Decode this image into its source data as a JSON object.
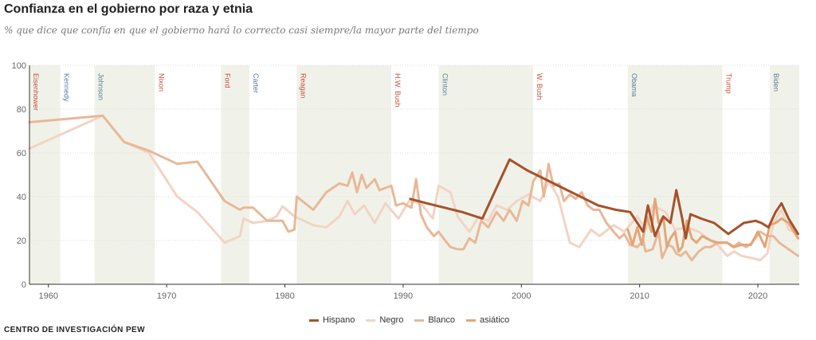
{
  "title": "Confianza en el gobierno por raza y etnia",
  "subtitle": "% que dice que confía en que el gobierno hará lo correcto casi siempre/la mayor parte del tiempo",
  "source": "CENTRO DE INVESTIGACIÓN PEW",
  "colors": {
    "shade": "#f0f2ea",
    "axis": "#333333",
    "grid": "#dcdcdc",
    "tick": "#666666",
    "dem": "#5b7d99",
    "rep": "#c1503a"
  },
  "chart_data": {
    "type": "line",
    "xlim": [
      1958.4,
      2023.5
    ],
    "ylim": [
      0,
      100
    ],
    "x_ticks": [
      1960,
      1970,
      1980,
      1990,
      2000,
      2010,
      2020
    ],
    "y_ticks": [
      0,
      20,
      40,
      60,
      80,
      100
    ],
    "grid": true,
    "legend": "bottom-center",
    "presidents": [
      {
        "name": "Eisenhower",
        "start": 1958.4,
        "end": 1961.0,
        "party": "rep",
        "shaded": true
      },
      {
        "name": "Kennedy",
        "start": 1961.0,
        "end": 1963.9,
        "party": "dem",
        "shaded": false
      },
      {
        "name": "Johnson",
        "start": 1963.9,
        "end": 1969.0,
        "party": "dem",
        "shaded": true
      },
      {
        "name": "Nixon",
        "start": 1969.0,
        "end": 1974.6,
        "party": "rep",
        "shaded": false
      },
      {
        "name": "Ford",
        "start": 1974.6,
        "end": 1977.0,
        "party": "rep",
        "shaded": true
      },
      {
        "name": "Carter",
        "start": 1977.0,
        "end": 1981.0,
        "party": "dem",
        "shaded": false
      },
      {
        "name": "Reagan",
        "start": 1981.0,
        "end": 1989.0,
        "party": "rep",
        "shaded": true
      },
      {
        "name": "H.W. Bush",
        "start": 1989.0,
        "end": 1993.0,
        "party": "rep",
        "shaded": false
      },
      {
        "name": "Clinton",
        "start": 1993.0,
        "end": 2001.0,
        "party": "dem",
        "shaded": true
      },
      {
        "name": "W. Bush",
        "start": 2001.0,
        "end": 2009.0,
        "party": "rep",
        "shaded": false
      },
      {
        "name": "Obama",
        "start": 2009.0,
        "end": 2017.0,
        "party": "dem",
        "shaded": true
      },
      {
        "name": "Trump",
        "start": 2017.0,
        "end": 2021.0,
        "party": "rep",
        "shaded": false
      },
      {
        "name": "Biden",
        "start": 2021.0,
        "end": 2023.5,
        "party": "dem",
        "shaded": true
      }
    ],
    "series": [
      {
        "name": "Negro",
        "color": "#f2d4c4",
        "points": [
          [
            1958.4,
            62
          ],
          [
            1964.6,
            77
          ],
          [
            1966.4,
            65
          ],
          [
            1968.5,
            60
          ],
          [
            1970.9,
            40
          ],
          [
            1972.6,
            33
          ],
          [
            1974.9,
            19
          ],
          [
            1976.2,
            22
          ],
          [
            1976.5,
            30
          ],
          [
            1977.3,
            28
          ],
          [
            1978.5,
            29
          ],
          [
            1979.3,
            31
          ],
          [
            1979.8,
            35.6
          ],
          [
            1980.8,
            31
          ],
          [
            1982.4,
            27
          ],
          [
            1983.5,
            26
          ],
          [
            1984.6,
            31
          ],
          [
            1985.3,
            38
          ],
          [
            1985.9,
            32
          ],
          [
            1986.7,
            36
          ],
          [
            1987.6,
            28
          ],
          [
            1988.5,
            37
          ],
          [
            1989.6,
            30
          ],
          [
            1990.5,
            38
          ],
          [
            1991.5,
            37
          ],
          [
            1992.5,
            30
          ],
          [
            1993.0,
            45
          ],
          [
            1994.0,
            42
          ],
          [
            1994.6,
            31
          ],
          [
            1995.6,
            24
          ],
          [
            1996.4,
            31
          ],
          [
            1997.2,
            29
          ],
          [
            1997.9,
            36
          ],
          [
            1998.8,
            34
          ],
          [
            1999.6,
            38
          ],
          [
            2000.6,
            41
          ],
          [
            2001.6,
            38
          ],
          [
            2002.3,
            47
          ],
          [
            2003.1,
            40
          ],
          [
            2004.1,
            19
          ],
          [
            2004.9,
            17
          ],
          [
            2005.9,
            25
          ],
          [
            2006.6,
            22
          ],
          [
            2007.8,
            27
          ],
          [
            2008.7,
            24
          ],
          [
            2009.8,
            31
          ],
          [
            2010.5,
            25
          ],
          [
            2011.1,
            36
          ],
          [
            2012.2,
            33
          ],
          [
            2013.0,
            25
          ],
          [
            2014.0,
            26
          ],
          [
            2015.0,
            24
          ],
          [
            2016.0,
            20
          ],
          [
            2016.6,
            18
          ],
          [
            2017.4,
            13
          ],
          [
            2018.0,
            15
          ],
          [
            2018.6,
            13
          ],
          [
            2019.5,
            12
          ],
          [
            2020.2,
            11
          ],
          [
            2020.8,
            14
          ],
          [
            2021.3,
            28
          ],
          [
            2022.0,
            34
          ],
          [
            2022.6,
            25
          ],
          [
            2023.4,
            23
          ]
        ]
      },
      {
        "name": "Blanco",
        "color": "#e8b898",
        "points": [
          [
            1958.4,
            74
          ],
          [
            1964.6,
            77
          ],
          [
            1966.4,
            65
          ],
          [
            1968.5,
            61
          ],
          [
            1970.9,
            55
          ],
          [
            1972.6,
            56
          ],
          [
            1974.9,
            38
          ],
          [
            1976.2,
            34
          ],
          [
            1976.5,
            35
          ],
          [
            1977.3,
            35
          ],
          [
            1978.5,
            29
          ],
          [
            1979.3,
            29
          ],
          [
            1979.8,
            29
          ],
          [
            1980.3,
            24
          ],
          [
            1980.8,
            25
          ],
          [
            1981.0,
            40
          ],
          [
            1982.4,
            34
          ],
          [
            1983.5,
            42
          ],
          [
            1984.6,
            46
          ],
          [
            1985.3,
            45
          ],
          [
            1985.7,
            51
          ],
          [
            1986.1,
            42
          ],
          [
            1986.5,
            50
          ],
          [
            1986.9,
            44
          ],
          [
            1987.6,
            48
          ],
          [
            1988.0,
            43
          ],
          [
            1988.5,
            44
          ],
          [
            1989.0,
            45
          ],
          [
            1989.4,
            36
          ],
          [
            1990.0,
            37
          ],
          [
            1990.7,
            35
          ],
          [
            1991.1,
            48
          ],
          [
            1991.5,
            32
          ],
          [
            1992.0,
            26
          ],
          [
            1992.6,
            22
          ],
          [
            1993.0,
            24
          ],
          [
            1993.7,
            19
          ],
          [
            1994.0,
            17
          ],
          [
            1994.6,
            16
          ],
          [
            1995.1,
            16
          ],
          [
            1995.6,
            21
          ],
          [
            1996.1,
            19
          ],
          [
            1996.6,
            29
          ],
          [
            1997.2,
            26
          ],
          [
            1997.9,
            33
          ],
          [
            1998.5,
            29
          ],
          [
            1999.0,
            34
          ],
          [
            1999.6,
            29
          ],
          [
            2000.1,
            38
          ],
          [
            2000.6,
            36
          ],
          [
            2001.0,
            47
          ],
          [
            2001.6,
            52
          ],
          [
            2001.9,
            40
          ],
          [
            2002.3,
            55
          ],
          [
            2002.7,
            45
          ],
          [
            2003.2,
            46
          ],
          [
            2003.6,
            38
          ],
          [
            2004.1,
            41
          ],
          [
            2004.6,
            39
          ],
          [
            2005.1,
            42
          ],
          [
            2005.6,
            36
          ],
          [
            2006.1,
            34
          ],
          [
            2006.6,
            34
          ],
          [
            2007.2,
            28
          ],
          [
            2007.8,
            24
          ],
          [
            2008.3,
            21
          ],
          [
            2008.7,
            23
          ],
          [
            2009.2,
            18
          ],
          [
            2009.8,
            17
          ],
          [
            2010.3,
            20
          ],
          [
            2010.5,
            15
          ],
          [
            2011.1,
            16
          ],
          [
            2011.6,
            24
          ],
          [
            2011.9,
            12
          ],
          [
            2012.4,
            18
          ],
          [
            2012.8,
            17
          ],
          [
            2013.1,
            14
          ],
          [
            2013.5,
            13
          ],
          [
            2013.9,
            15
          ],
          [
            2014.4,
            11
          ],
          [
            2015.0,
            15
          ],
          [
            2015.5,
            17
          ],
          [
            2016.0,
            17
          ],
          [
            2016.6,
            19
          ],
          [
            2017.4,
            19
          ],
          [
            2017.9,
            17
          ],
          [
            2018.4,
            19
          ],
          [
            2019.0,
            17
          ],
          [
            2019.5,
            19
          ],
          [
            2020.2,
            24
          ],
          [
            2020.8,
            22
          ],
          [
            2021.3,
            22
          ],
          [
            2021.8,
            19
          ],
          [
            2022.6,
            16
          ],
          [
            2023.4,
            13
          ]
        ]
      },
      {
        "name": "asiático",
        "color": "#e5a577",
        "points": [
          [
            2009.0,
            25
          ],
          [
            2009.4,
            18
          ],
          [
            2009.8,
            26
          ],
          [
            2010.2,
            18
          ],
          [
            2010.6,
            31
          ],
          [
            2011.0,
            24
          ],
          [
            2011.3,
            39
          ],
          [
            2011.6,
            28
          ],
          [
            2012.0,
            31
          ],
          [
            2012.3,
            17
          ],
          [
            2012.6,
            21
          ],
          [
            2013.0,
            24
          ],
          [
            2013.3,
            15
          ],
          [
            2013.6,
            17
          ],
          [
            2014.0,
            29
          ],
          [
            2014.4,
            21
          ],
          [
            2014.8,
            19
          ],
          [
            2015.3,
            22
          ],
          [
            2016.0,
            20
          ],
          [
            2016.6,
            19
          ],
          [
            2017.4,
            19
          ],
          [
            2018.0,
            17
          ],
          [
            2018.6,
            18
          ],
          [
            2019.4,
            18
          ],
          [
            2020.0,
            24
          ],
          [
            2020.6,
            17
          ],
          [
            2021.0,
            27
          ],
          [
            2021.5,
            28
          ],
          [
            2022.0,
            30
          ],
          [
            2022.6,
            28
          ],
          [
            2023.4,
            21
          ]
        ]
      },
      {
        "name": "Hispano",
        "color": "#a6522b",
        "points": [
          [
            1990.6,
            39
          ],
          [
            1992.0,
            37
          ],
          [
            1993.5,
            35
          ],
          [
            1995.0,
            33
          ],
          [
            1996.7,
            30
          ],
          [
            1999.0,
            57
          ],
          [
            2000.5,
            52
          ],
          [
            2002.0,
            48
          ],
          [
            2003.5,
            44
          ],
          [
            2005.0,
            40
          ],
          [
            2006.5,
            36
          ],
          [
            2008.0,
            34
          ],
          [
            2009.2,
            33
          ],
          [
            2010.3,
            24
          ],
          [
            2010.7,
            36
          ],
          [
            2011.3,
            22
          ],
          [
            2012.0,
            31
          ],
          [
            2012.6,
            28
          ],
          [
            2013.1,
            43
          ],
          [
            2013.6,
            30
          ],
          [
            2013.9,
            21
          ],
          [
            2014.3,
            32
          ],
          [
            2015.2,
            30
          ],
          [
            2016.3,
            28
          ],
          [
            2017.5,
            23
          ],
          [
            2018.8,
            28
          ],
          [
            2019.8,
            29
          ],
          [
            2020.3,
            28
          ],
          [
            2020.9,
            26
          ],
          [
            2021.5,
            33
          ],
          [
            2022.0,
            37
          ],
          [
            2022.6,
            30
          ],
          [
            2023.4,
            23
          ]
        ]
      }
    ]
  },
  "legend": [
    {
      "name": "Hispano",
      "color": "#a6522b"
    },
    {
      "name": "Negro",
      "color": "#f2d4c4"
    },
    {
      "name": "Blanco",
      "color": "#e8b898"
    },
    {
      "name": "asiático",
      "color": "#e5a577"
    }
  ]
}
